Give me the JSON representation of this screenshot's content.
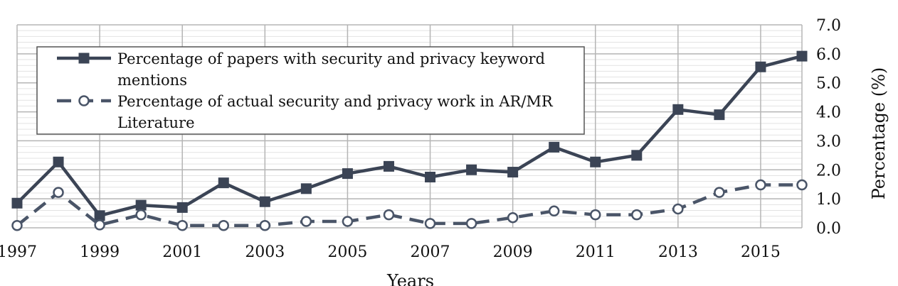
{
  "chart_data": {
    "type": "line",
    "x": [
      1997,
      1998,
      1999,
      2000,
      2001,
      2002,
      2003,
      2004,
      2005,
      2006,
      2007,
      2008,
      2009,
      2010,
      2011,
      2012,
      2013,
      2014,
      2015,
      2016
    ],
    "x_tick_labels": [
      "1997",
      "1999",
      "2001",
      "2003",
      "2005",
      "2007",
      "2009",
      "2011",
      "2013",
      "2015"
    ],
    "y_tick_labels": [
      "0.0",
      "1.0",
      "2.0",
      "3.0",
      "4.0",
      "5.0",
      "6.0",
      "7.0"
    ],
    "xlabel": "Years",
    "ylabel": "Percentage (%)",
    "xlim": [
      1997,
      2016
    ],
    "ylim": [
      0,
      7
    ],
    "grid": true,
    "legend_position": "top-left",
    "series": [
      {
        "name_lines": [
          "Percentage  of papers with security and privacy keyword",
          "mentions"
        ],
        "style": "solid",
        "marker": "square",
        "color": "#3b4455",
        "values": [
          0.85,
          2.27,
          0.42,
          0.78,
          0.7,
          1.55,
          0.9,
          1.35,
          1.87,
          2.12,
          1.75,
          2.0,
          1.92,
          2.78,
          2.27,
          2.5,
          4.08,
          3.9,
          5.55,
          5.92
        ]
      },
      {
        "name_lines": [
          "Percentage  of actual security and privacy work in AR/MR",
          "Literature"
        ],
        "style": "dashed",
        "marker": "circle",
        "color": "#4a5568",
        "values": [
          0.08,
          1.22,
          0.1,
          0.45,
          0.08,
          0.08,
          0.08,
          0.22,
          0.22,
          0.45,
          0.15,
          0.15,
          0.35,
          0.58,
          0.45,
          0.45,
          0.65,
          1.22,
          1.48,
          1.48
        ]
      }
    ]
  }
}
